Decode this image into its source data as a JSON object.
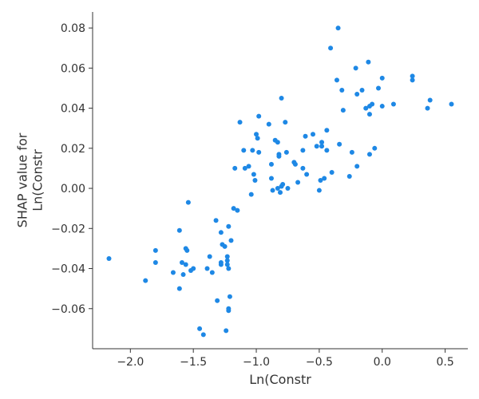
{
  "chart_data": {
    "type": "scatter",
    "title": "",
    "xlabel": "Ln(Constr",
    "ylabel": [
      "SHAP value for",
      "Ln(Constr"
    ],
    "xlim": [
      -2.3,
      0.68
    ],
    "ylim": [
      -0.08,
      0.088
    ],
    "xticks": [
      -2.0,
      -1.5,
      -1.0,
      -0.5,
      0.0,
      0.5
    ],
    "xtick_labels": [
      "−2.0",
      "−1.5",
      "−1.0",
      "−0.5",
      "0.0",
      "0.5"
    ],
    "yticks": [
      -0.06,
      -0.04,
      -0.02,
      0.0,
      0.02,
      0.04,
      0.06,
      0.08
    ],
    "ytick_labels": [
      "−0.06",
      "−0.04",
      "−0.02",
      "0.00",
      "0.02",
      "0.04",
      "0.06",
      "0.08"
    ],
    "grid": false,
    "color": "#1e88e5",
    "points": [
      [
        -2.17,
        -0.035
      ],
      [
        -1.88,
        -0.046
      ],
      [
        -1.8,
        -0.031
      ],
      [
        -1.8,
        -0.037
      ],
      [
        -1.66,
        -0.042
      ],
      [
        -1.61,
        -0.021
      ],
      [
        -1.61,
        -0.05
      ],
      [
        -1.59,
        -0.037
      ],
      [
        -1.58,
        -0.043
      ],
      [
        -1.56,
        -0.03
      ],
      [
        -1.56,
        -0.038
      ],
      [
        -1.55,
        -0.031
      ],
      [
        -1.54,
        -0.007
      ],
      [
        -1.52,
        -0.041
      ],
      [
        -1.5,
        -0.04
      ],
      [
        -1.45,
        -0.07
      ],
      [
        -1.42,
        -0.073
      ],
      [
        -1.39,
        -0.04
      ],
      [
        -1.37,
        -0.034
      ],
      [
        -1.35,
        -0.042
      ],
      [
        -1.32,
        -0.016
      ],
      [
        -1.31,
        -0.056
      ],
      [
        -1.28,
        -0.022
      ],
      [
        -1.28,
        -0.037
      ],
      [
        -1.28,
        -0.038
      ],
      [
        -1.27,
        -0.028
      ],
      [
        -1.25,
        -0.029
      ],
      [
        -1.24,
        -0.071
      ],
      [
        -1.23,
        -0.034
      ],
      [
        -1.23,
        -0.036
      ],
      [
        -1.23,
        -0.038
      ],
      [
        -1.22,
        -0.04
      ],
      [
        -1.22,
        -0.06
      ],
      [
        -1.22,
        -0.061
      ],
      [
        -1.22,
        -0.019
      ],
      [
        -1.21,
        -0.054
      ],
      [
        -1.2,
        -0.026
      ],
      [
        -1.18,
        -0.01
      ],
      [
        -1.17,
        0.01
      ],
      [
        -1.15,
        -0.011
      ],
      [
        -1.13,
        0.033
      ],
      [
        -1.1,
        0.019
      ],
      [
        -1.09,
        0.01
      ],
      [
        -1.06,
        0.011
      ],
      [
        -1.04,
        -0.003
      ],
      [
        -1.03,
        0.019
      ],
      [
        -1.02,
        0.007
      ],
      [
        -1.01,
        0.004
      ],
      [
        -1.0,
        0.027
      ],
      [
        -0.99,
        0.025
      ],
      [
        -0.98,
        0.018
      ],
      [
        -0.98,
        0.036
      ],
      [
        -0.9,
        0.032
      ],
      [
        -0.88,
        0.005
      ],
      [
        -0.88,
        0.012
      ],
      [
        -0.87,
        -0.001
      ],
      [
        -0.85,
        0.024
      ],
      [
        -0.83,
        0.023
      ],
      [
        -0.83,
        0.0
      ],
      [
        -0.82,
        0.016
      ],
      [
        -0.82,
        0.017
      ],
      [
        -0.81,
        -0.002
      ],
      [
        -0.8,
        0.045
      ],
      [
        -0.8,
        0.001
      ],
      [
        -0.79,
        0.002
      ],
      [
        -0.77,
        0.033
      ],
      [
        -0.76,
        0.018
      ],
      [
        -0.75,
        0.0
      ],
      [
        -0.7,
        0.013
      ],
      [
        -0.69,
        0.012
      ],
      [
        -0.67,
        0.003
      ],
      [
        -0.63,
        0.01
      ],
      [
        -0.63,
        0.019
      ],
      [
        -0.61,
        0.026
      ],
      [
        -0.6,
        0.007
      ],
      [
        -0.55,
        0.027
      ],
      [
        -0.52,
        0.021
      ],
      [
        -0.5,
        -0.001
      ],
      [
        -0.49,
        0.004
      ],
      [
        -0.48,
        0.021
      ],
      [
        -0.48,
        0.023
      ],
      [
        -0.46,
        0.005
      ],
      [
        -0.44,
        0.029
      ],
      [
        -0.44,
        0.019
      ],
      [
        -0.41,
        0.07
      ],
      [
        -0.4,
        0.008
      ],
      [
        -0.36,
        0.054
      ],
      [
        -0.35,
        0.08
      ],
      [
        -0.34,
        0.022
      ],
      [
        -0.32,
        0.049
      ],
      [
        -0.31,
        0.039
      ],
      [
        -0.26,
        0.006
      ],
      [
        -0.24,
        0.018
      ],
      [
        -0.21,
        0.06
      ],
      [
        -0.2,
        0.047
      ],
      [
        -0.2,
        0.011
      ],
      [
        -0.16,
        0.049
      ],
      [
        -0.13,
        0.04
      ],
      [
        -0.11,
        0.063
      ],
      [
        -0.1,
        0.041
      ],
      [
        -0.1,
        0.037
      ],
      [
        -0.1,
        0.017
      ],
      [
        -0.08,
        0.042
      ],
      [
        -0.06,
        0.02
      ],
      [
        -0.03,
        0.05
      ],
      [
        0.0,
        0.055
      ],
      [
        0.0,
        0.041
      ],
      [
        0.09,
        0.042
      ],
      [
        0.24,
        0.056
      ],
      [
        0.24,
        0.054
      ],
      [
        0.36,
        0.04
      ],
      [
        0.38,
        0.044
      ],
      [
        0.55,
        0.042
      ]
    ]
  }
}
